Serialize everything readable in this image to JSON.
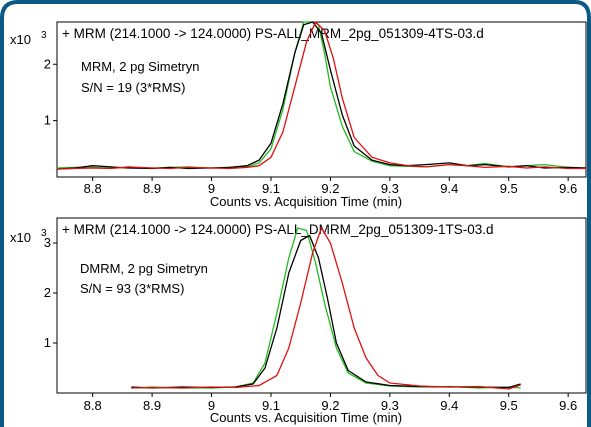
{
  "colors": {
    "frame": "#0e5a87",
    "green": "#22bb22",
    "black": "#000000",
    "red": "#e01010"
  },
  "chart_data": [
    {
      "type": "line",
      "title": "+ MRM (214.1000 -> 124.0000) PS-ALL_MRM_2pg_051309-4TS-03.d",
      "annotation_line1": "MRM, 2 pg Simetryn",
      "annotation_line2": "S/N = 19 (3*RMS)",
      "ylabel_prefix": "x10",
      "ylabel_exp": "3",
      "xlabel": "Counts vs. Acquisition Time (min)",
      "xlim": [
        8.74,
        9.63
      ],
      "ylim": [
        0,
        2.75
      ],
      "x_ticks": [
        8.8,
        8.9,
        9.0,
        9.1,
        9.2,
        9.3,
        9.4,
        9.5,
        9.6
      ],
      "x_tick_labels": [
        "8.8",
        "8.9",
        "9",
        "9.1",
        "9.2",
        "9.3",
        "9.4",
        "9.5",
        "9.6"
      ],
      "y_ticks": [
        1,
        2
      ],
      "y_tick_labels": [
        "1",
        "2"
      ],
      "series": [
        {
          "color": "green",
          "x": [
            8.74,
            8.77,
            8.8,
            8.83,
            8.86,
            8.9,
            8.93,
            8.96,
            9.0,
            9.03,
            9.06,
            9.08,
            9.1,
            9.12,
            9.14,
            9.155,
            9.17,
            9.18,
            9.19,
            9.2,
            9.22,
            9.24,
            9.27,
            9.3,
            9.33,
            9.36,
            9.4,
            9.43,
            9.46,
            9.5,
            9.53,
            9.56,
            9.6,
            9.63
          ],
          "y": [
            0.16,
            0.17,
            0.17,
            0.16,
            0.17,
            0.16,
            0.17,
            0.18,
            0.16,
            0.17,
            0.18,
            0.25,
            0.5,
            1.2,
            2.2,
            2.85,
            2.95,
            2.7,
            2.2,
            1.6,
            0.9,
            0.45,
            0.28,
            0.2,
            0.19,
            0.18,
            0.22,
            0.2,
            0.24,
            0.18,
            0.2,
            0.22,
            0.17,
            0.16
          ]
        },
        {
          "color": "black",
          "x": [
            8.74,
            8.77,
            8.8,
            8.83,
            8.86,
            8.9,
            8.93,
            8.96,
            9.0,
            9.03,
            9.06,
            9.08,
            9.1,
            9.12,
            9.14,
            9.155,
            9.17,
            9.185,
            9.2,
            9.22,
            9.24,
            9.27,
            9.3,
            9.33,
            9.36,
            9.4,
            9.43,
            9.46,
            9.5,
            9.53,
            9.56,
            9.6,
            9.63
          ],
          "y": [
            0.14,
            0.16,
            0.2,
            0.18,
            0.16,
            0.15,
            0.17,
            0.15,
            0.16,
            0.17,
            0.2,
            0.3,
            0.6,
            1.3,
            2.2,
            2.7,
            2.8,
            2.55,
            1.9,
            1.1,
            0.55,
            0.3,
            0.22,
            0.2,
            0.22,
            0.25,
            0.2,
            0.22,
            0.18,
            0.2,
            0.16,
            0.17,
            0.16
          ]
        },
        {
          "color": "red",
          "x": [
            8.74,
            8.77,
            8.8,
            8.83,
            8.86,
            8.9,
            8.93,
            8.96,
            9.0,
            9.03,
            9.06,
            9.08,
            9.1,
            9.12,
            9.14,
            9.16,
            9.175,
            9.19,
            9.205,
            9.22,
            9.24,
            9.27,
            9.3,
            9.33,
            9.36,
            9.4,
            9.43,
            9.46,
            9.5,
            9.53,
            9.56,
            9.6,
            9.63
          ],
          "y": [
            0.14,
            0.15,
            0.16,
            0.15,
            0.18,
            0.16,
            0.15,
            0.17,
            0.16,
            0.15,
            0.17,
            0.2,
            0.35,
            0.8,
            1.6,
            2.4,
            2.75,
            2.6,
            2.1,
            1.4,
            0.7,
            0.35,
            0.25,
            0.2,
            0.18,
            0.22,
            0.2,
            0.17,
            0.19,
            0.16,
            0.18,
            0.15,
            0.15
          ]
        }
      ]
    },
    {
      "type": "line",
      "title": "+ MRM (214.1000 -> 124.0000) PS-ALL_DMRM_2pg_051309-1TS-03.d",
      "annotation_line1": "DMRM, 2 pg Simetryn",
      "annotation_line2": "S/N = 93 (3*RMS)",
      "ylabel_prefix": "x10",
      "ylabel_exp": "3",
      "xlabel": "Counts vs. Acquisition Time (min)",
      "xlim": [
        8.74,
        9.63
      ],
      "ylim": [
        0,
        3.5
      ],
      "x_ticks": [
        8.8,
        8.9,
        9.0,
        9.1,
        9.2,
        9.3,
        9.4,
        9.5,
        9.6
      ],
      "x_tick_labels": [
        "8.8",
        "8.9",
        "9",
        "9.1",
        "9.2",
        "9.3",
        "9.4",
        "9.5",
        "9.6"
      ],
      "y_ticks": [
        1,
        2,
        3
      ],
      "y_tick_labels": [
        "1",
        "2",
        "3"
      ],
      "series": [
        {
          "color": "green",
          "x": [
            8.865,
            8.9,
            8.95,
            9.0,
            9.04,
            9.07,
            9.09,
            9.11,
            9.13,
            9.145,
            9.16,
            9.175,
            9.19,
            9.21,
            9.23,
            9.26,
            9.3,
            9.35,
            9.4,
            9.45,
            9.5,
            9.52
          ],
          "y": [
            0.1,
            0.12,
            0.1,
            0.1,
            0.12,
            0.2,
            0.6,
            1.6,
            2.7,
            3.3,
            3.25,
            2.6,
            1.8,
            0.9,
            0.4,
            0.2,
            0.14,
            0.12,
            0.13,
            0.1,
            0.12,
            0.1
          ]
        },
        {
          "color": "black",
          "x": [
            8.865,
            8.9,
            8.95,
            9.0,
            9.04,
            9.07,
            9.09,
            9.11,
            9.13,
            9.15,
            9.165,
            9.18,
            9.195,
            9.21,
            9.23,
            9.26,
            9.3,
            9.35,
            9.4,
            9.45,
            9.5,
            9.52
          ],
          "y": [
            0.12,
            0.1,
            0.12,
            0.11,
            0.12,
            0.18,
            0.5,
            1.3,
            2.4,
            3.05,
            3.15,
            2.7,
            1.9,
            1.0,
            0.45,
            0.22,
            0.15,
            0.13,
            0.12,
            0.12,
            0.11,
            0.18
          ]
        },
        {
          "color": "red",
          "x": [
            8.865,
            8.9,
            8.95,
            9.0,
            9.04,
            9.08,
            9.11,
            9.13,
            9.15,
            9.17,
            9.185,
            9.2,
            9.22,
            9.24,
            9.26,
            9.28,
            9.3,
            9.35,
            9.4,
            9.45,
            9.5,
            9.52
          ],
          "y": [
            0.1,
            0.11,
            0.1,
            0.12,
            0.11,
            0.15,
            0.35,
            0.9,
            1.8,
            2.8,
            3.3,
            3.0,
            2.2,
            1.3,
            0.7,
            0.35,
            0.2,
            0.14,
            0.12,
            0.13,
            0.08,
            0.16
          ]
        }
      ]
    }
  ]
}
